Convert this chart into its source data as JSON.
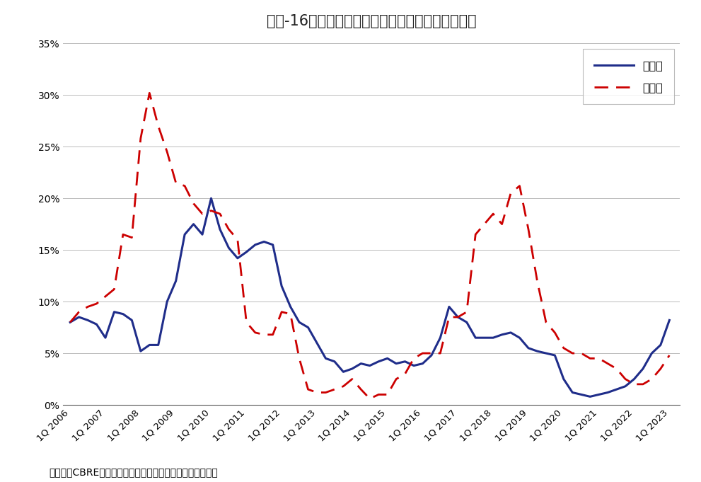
{
  "title": "図表-16　大型マルチテナント型物流施設の空室率",
  "source_text": "（出所）CBREのデータをもとにニッセイ基礎研究所が作成",
  "legend_1": "首都圏",
  "legend_2": "近畿圏",
  "color_line1": "#1f2d8a",
  "color_line2": "#cc0000",
  "background": "#ffffff",
  "ylim": [
    0,
    35
  ],
  "ytick_step": 5,
  "series1": [
    8.0,
    8.5,
    8.2,
    7.8,
    6.5,
    9.0,
    8.8,
    8.2,
    5.2,
    5.8,
    5.8,
    10.0,
    12.0,
    16.5,
    17.5,
    16.5,
    20.0,
    17.0,
    15.2,
    14.2,
    14.8,
    15.5,
    15.8,
    15.5,
    11.5,
    9.5,
    8.0,
    7.5,
    6.0,
    4.5,
    4.2,
    3.2,
    3.5,
    4.0,
    3.8,
    4.2,
    4.5,
    4.0,
    4.2,
    3.8,
    4.0,
    4.8,
    6.5,
    9.5,
    8.5,
    8.0,
    6.5,
    6.5,
    6.5,
    6.8,
    7.0,
    6.5,
    5.5,
    5.2,
    5.0,
    4.8,
    2.5,
    1.2,
    1.0,
    0.8,
    1.0,
    1.2,
    1.5,
    1.8,
    2.5,
    3.5,
    5.0,
    5.8,
    8.2
  ],
  "series2": [
    8.0,
    9.0,
    9.5,
    9.8,
    10.5,
    11.2,
    16.5,
    16.2,
    25.8,
    30.2,
    27.0,
    24.5,
    21.5,
    21.2,
    19.5,
    18.5,
    18.8,
    18.5,
    17.0,
    16.0,
    8.0,
    7.0,
    6.8,
    6.8,
    9.0,
    8.8,
    4.5,
    1.5,
    1.2,
    1.2,
    1.5,
    1.8,
    2.5,
    1.5,
    0.6,
    1.0,
    1.0,
    2.5,
    3.0,
    4.5,
    5.0,
    5.0,
    5.0,
    8.5,
    8.5,
    9.0,
    16.5,
    17.5,
    18.5,
    17.5,
    20.5,
    21.2,
    17.0,
    12.0,
    8.0,
    7.0,
    5.5,
    5.0,
    5.0,
    4.5,
    4.5,
    4.0,
    3.5,
    2.5,
    2.0,
    2.0,
    2.5,
    3.5,
    4.8
  ],
  "tick_years": [
    2006,
    2007,
    2008,
    2009,
    2010,
    2011,
    2012,
    2013,
    2014,
    2015,
    2016,
    2017,
    2018,
    2019,
    2020,
    2021,
    2022,
    2023
  ]
}
